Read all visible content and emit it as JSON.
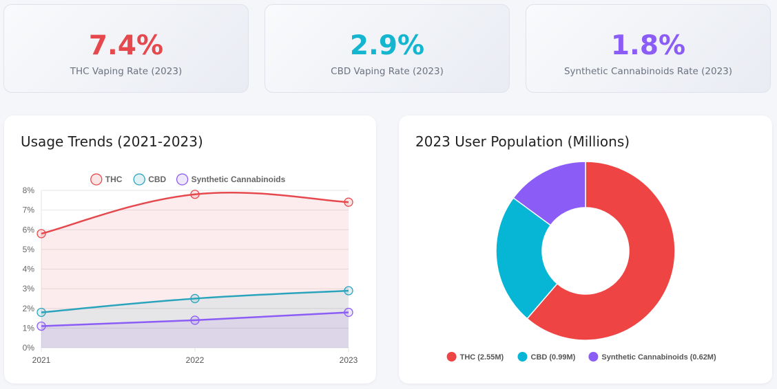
{
  "stats": [
    {
      "value": "7.4%",
      "label": "THC Vaping Rate (2023)",
      "color": "#e5484d"
    },
    {
      "value": "2.9%",
      "label": "CBD Vaping Rate (2023)",
      "color": "#13b5cf"
    },
    {
      "value": "1.8%",
      "label": "Synthetic Cannabinoids Rate (2023)",
      "color": "#8b5cf6"
    }
  ],
  "trend_panel": {
    "title": "Usage Trends (2021-2023)"
  },
  "pie_panel": {
    "title": "2023 User Population (Millions)"
  },
  "chart_data": [
    {
      "type": "line",
      "title": "Usage Trends (2021-2023)",
      "x": [
        "2021",
        "2022",
        "2023"
      ],
      "series": [
        {
          "name": "THC",
          "values": [
            5.8,
            7.8,
            7.4
          ],
          "color": "#e5484d"
        },
        {
          "name": "CBD",
          "values": [
            1.8,
            2.5,
            2.9
          ],
          "color": "#2aa4bd"
        },
        {
          "name": "Synthetic Cannabinoids",
          "values": [
            1.1,
            1.4,
            1.8
          ],
          "color": "#8b5cf6"
        }
      ],
      "ylim": [
        0,
        8
      ],
      "yticks": [
        "0%",
        "1%",
        "2%",
        "3%",
        "4%",
        "5%",
        "6%",
        "7%",
        "8%"
      ],
      "legend": "top",
      "grid": true,
      "fill": true
    },
    {
      "type": "pie",
      "title": "2023 User Population (Millions)",
      "labels": [
        "THC (2.55M)",
        "CBD (0.99M)",
        "Synthetic Cannabinoids (0.62M)"
      ],
      "values": [
        2.55,
        0.99,
        0.62
      ],
      "colors": [
        "#ef4444",
        "#06b6d4",
        "#8b5cf6"
      ],
      "legend": "bottom"
    }
  ]
}
